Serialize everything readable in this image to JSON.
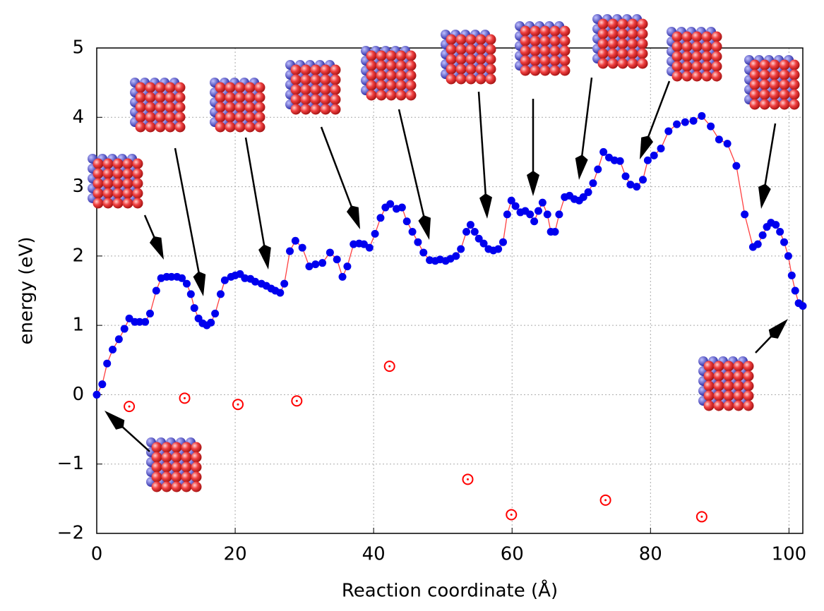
{
  "chart_data": {
    "type": "scatter",
    "xlabel": "Reaction coordinate (Å)",
    "ylabel": "energy (eV)",
    "xlim": [
      0,
      102
    ],
    "ylim": [
      -2,
      5
    ],
    "xticks": [
      0,
      20,
      40,
      60,
      80,
      100
    ],
    "yticks": [
      {
        "value": -2,
        "label": "−2"
      },
      {
        "value": -1,
        "label": "−1"
      },
      0,
      1,
      2,
      3,
      4,
      5
    ],
    "grid": true,
    "series": [
      {
        "color": "#0000ee",
        "line_color": "#ff4040",
        "connected": true,
        "x": [
          0,
          0.8,
          1.5,
          2.3,
          3.2,
          4.0,
          4.7,
          5.5,
          6.2,
          7.0,
          7.7,
          8.6,
          9.3,
          10.1,
          10.8,
          11.6,
          12.3,
          13.0,
          13.6,
          14.1,
          14.7,
          15.3,
          15.9,
          16.5,
          17.1,
          17.9,
          18.5,
          19.4,
          20.0,
          20.7,
          21.4,
          22.2,
          22.9,
          23.8,
          24.5,
          25.2,
          25.8,
          26.5,
          27.1,
          27.9,
          28.7,
          29.7,
          30.7,
          31.6,
          32.6,
          33.7,
          34.7,
          35.5,
          36.2,
          37.1,
          37.9,
          38.6,
          39.4,
          40.2,
          41.0,
          41.7,
          42.4,
          43.3,
          44.1,
          44.8,
          45.6,
          46.4,
          47.2,
          48.1,
          48.9,
          49.6,
          50.4,
          51.1,
          51.9,
          52.6,
          53.4,
          54.0,
          54.6,
          55.2,
          55.9,
          56.6,
          57.3,
          58.0,
          58.7,
          59.3,
          59.9,
          60.5,
          61.2,
          61.9,
          62.6,
          63.2,
          63.8,
          64.4,
          65.1,
          65.6,
          66.2,
          66.8,
          67.6,
          68.3,
          69.0,
          69.7,
          70.3,
          71.0,
          71.7,
          72.4,
          73.2,
          74.0,
          74.8,
          75.6,
          76.4,
          77.1,
          78.0,
          78.9,
          79.6,
          80.5,
          81.5,
          82.6,
          83.8,
          85.0,
          86.2,
          87.4,
          88.7,
          89.9,
          91.1,
          92.4,
          93.6,
          94.8,
          95.5,
          96.2,
          96.8,
          97.4,
          98.1,
          98.7,
          99.3,
          99.9,
          100.4,
          100.9,
          101.4,
          102.0
        ],
        "values": [
          0,
          0.15,
          0.45,
          0.65,
          0.8,
          0.95,
          1.1,
          1.05,
          1.05,
          1.05,
          1.17,
          1.5,
          1.68,
          1.7,
          1.7,
          1.7,
          1.68,
          1.6,
          1.45,
          1.25,
          1.1,
          1.03,
          1.0,
          1.04,
          1.17,
          1.45,
          1.65,
          1.7,
          1.72,
          1.74,
          1.68,
          1.67,
          1.63,
          1.6,
          1.57,
          1.53,
          1.5,
          1.47,
          1.6,
          2.07,
          2.22,
          2.12,
          1.85,
          1.88,
          1.9,
          2.05,
          1.95,
          1.7,
          1.85,
          2.17,
          2.18,
          2.17,
          2.12,
          2.32,
          2.55,
          2.7,
          2.75,
          2.68,
          2.7,
          2.5,
          2.35,
          2.2,
          2.05,
          1.94,
          1.93,
          1.95,
          1.93,
          1.96,
          2.0,
          2.1,
          2.35,
          2.45,
          2.35,
          2.25,
          2.18,
          2.1,
          2.08,
          2.1,
          2.2,
          2.6,
          2.8,
          2.72,
          2.63,
          2.65,
          2.6,
          2.5,
          2.65,
          2.77,
          2.6,
          2.35,
          2.35,
          2.6,
          2.85,
          2.87,
          2.82,
          2.8,
          2.85,
          2.92,
          3.05,
          3.25,
          3.5,
          3.42,
          3.38,
          3.37,
          3.15,
          3.03,
          3.0,
          3.1,
          3.38,
          3.45,
          3.55,
          3.8,
          3.9,
          3.93,
          3.95,
          4.02,
          3.87,
          3.68,
          3.62,
          3.3,
          2.6,
          2.13,
          2.17,
          2.3,
          2.42,
          2.48,
          2.45,
          2.35,
          2.2,
          2.0,
          1.72,
          1.5,
          1.32,
          1.28
        ]
      },
      {
        "color": "#ff0000",
        "connected": false,
        "open": true,
        "x": [
          4.7,
          12.7,
          20.4,
          28.9,
          42.3,
          53.6,
          59.9,
          73.5,
          87.4
        ],
        "values": [
          -0.17,
          -0.05,
          -0.14,
          -0.09,
          0.41,
          -1.22,
          -1.73,
          -1.52,
          -1.76
        ]
      }
    ]
  }
}
